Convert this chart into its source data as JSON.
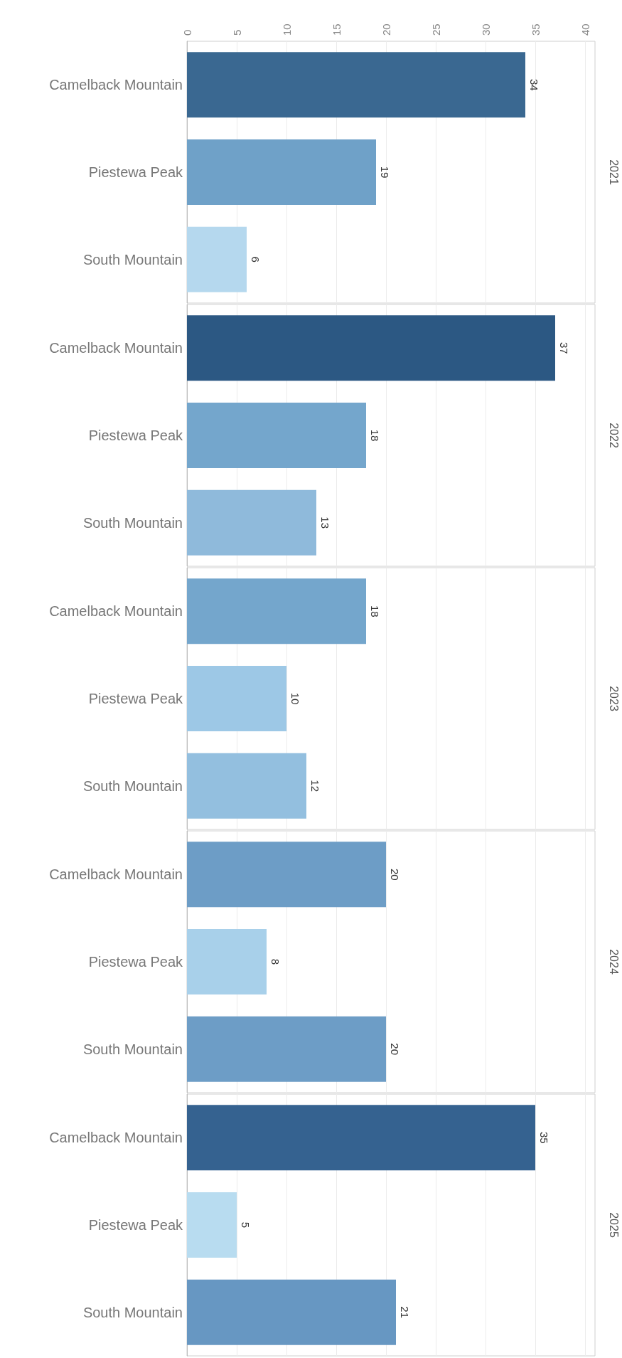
{
  "chart_data": [
    {
      "type": "bar",
      "orientation": "horizontal",
      "y2label": "2021",
      "categories": [
        "Camelback Mountain",
        "Piestewa Peak",
        "South Mountain"
      ],
      "values": [
        34,
        19,
        6
      ],
      "colors": [
        "#3a6891",
        "#6fa1c8",
        "#b5d8ee"
      ],
      "data_labels": true,
      "xlim": [
        0,
        41
      ],
      "xticks": [
        0,
        5,
        10,
        15,
        20,
        25,
        30,
        35,
        40
      ],
      "grid": "x"
    },
    {
      "type": "bar",
      "orientation": "horizontal",
      "y2label": "2022",
      "categories": [
        "Camelback Mountain",
        "Piestewa Peak",
        "South Mountain"
      ],
      "values": [
        37,
        18,
        13
      ],
      "colors": [
        "#2c5883",
        "#74a6cc",
        "#8fbadb"
      ],
      "data_labels": true,
      "xlim": [
        0,
        41
      ],
      "xticks": [
        0,
        5,
        10,
        15,
        20,
        25,
        30,
        35,
        40
      ],
      "grid": "x",
      "tick_labels": "y"
    },
    {
      "type": "bar",
      "orientation": "horizontal",
      "y2label": "2023",
      "categories": [
        "Camelback Mountain",
        "Piestewa Peak",
        "South Mountain"
      ],
      "values": [
        18,
        10,
        12
      ],
      "colors": [
        "#74a6cc",
        "#9dc8e6",
        "#93bfdf"
      ],
      "data_labels": true,
      "xlim": [
        0,
        41
      ],
      "xticks": [
        0,
        5,
        10,
        15,
        20,
        25,
        30,
        35,
        40
      ],
      "grid": "x",
      "tick_labels": "y"
    },
    {
      "type": "bar",
      "orientation": "horizontal",
      "y2label": "2024",
      "categories": [
        "Camelback Mountain",
        "Piestewa Peak",
        "South Mountain"
      ],
      "values": [
        20,
        8,
        20
      ],
      "colors": [
        "#6d9dc6",
        "#a8d0ea",
        "#6d9dc6"
      ],
      "data_labels": true,
      "xlim": [
        0,
        41
      ],
      "xticks": [
        0,
        5,
        10,
        15,
        20,
        25,
        30,
        35,
        40
      ],
      "grid": "x",
      "tick_labels": "y"
    },
    {
      "type": "bar",
      "orientation": "horizontal",
      "y2label": "2025",
      "categories": [
        "Camelback Mountain",
        "Piestewa Peak",
        "South Mountain"
      ],
      "values": [
        35,
        5,
        21
      ],
      "colors": [
        "#356290",
        "#b8dcf0",
        "#6797c2"
      ],
      "data_labels": true,
      "xlim": [
        0,
        41
      ],
      "xticks": [
        0,
        5,
        10,
        15,
        20,
        25,
        30,
        35,
        40
      ],
      "grid": "x",
      "tick_labels": "y"
    }
  ]
}
